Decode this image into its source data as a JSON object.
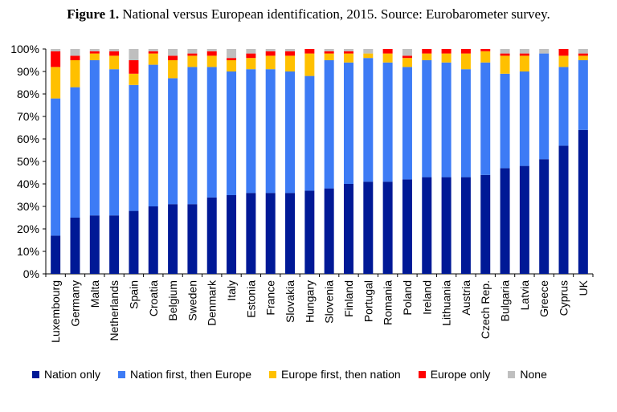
{
  "figure": {
    "label": "Figure 1.",
    "title": "National versus European identification, 2015. Source: Eurobarometer survey."
  },
  "chart_data": {
    "type": "bar",
    "stacked": true,
    "categories": [
      "Luxembourg",
      "Germany",
      "Malta",
      "Netherlands",
      "Spain",
      "Croatia",
      "Belgium",
      "Sweden",
      "Denmark",
      "Italy",
      "Estonia",
      "France",
      "Slovakia",
      "Hungary",
      "Slovenia",
      "Finland",
      "Portugal",
      "Romania",
      "Poland",
      "Ireland",
      "Lithuania",
      "Austria",
      "Czech Rep.",
      "Bulgaria",
      "Latvia",
      "Greece",
      "Cyprus",
      "UK"
    ],
    "series": [
      {
        "name": "Nation only",
        "color": "#001996",
        "values": [
          17,
          25,
          26,
          26,
          28,
          30,
          31,
          31,
          34,
          35,
          36,
          36,
          36,
          37,
          38,
          40,
          41,
          41,
          42,
          43,
          43,
          43,
          44,
          47,
          48,
          51,
          57,
          64
        ]
      },
      {
        "name": "Nation first, then Europe",
        "color": "#3D7BF5",
        "values": [
          61,
          58,
          69,
          65,
          56,
          63,
          56,
          61,
          58,
          55,
          55,
          55,
          54,
          51,
          57,
          54,
          55,
          53,
          50,
          52,
          51,
          48,
          50,
          42,
          42,
          47,
          35,
          31
        ]
      },
      {
        "name": "Europe first, then nation",
        "color": "#FFC000",
        "values": [
          14,
          12,
          3,
          6,
          5,
          5,
          8,
          5,
          5,
          5,
          5,
          6,
          7,
          10,
          3,
          4,
          2,
          4,
          4,
          3,
          4,
          7,
          5,
          8,
          7,
          0,
          5,
          2
        ]
      },
      {
        "name": "Europe only",
        "color": "#FF0000",
        "values": [
          7,
          2,
          1,
          2,
          6,
          1,
          2,
          1,
          2,
          1,
          2,
          2,
          2,
          2,
          1,
          1,
          0,
          2,
          1,
          2,
          2,
          2,
          1,
          1,
          1,
          0,
          3,
          1
        ]
      },
      {
        "name": "None",
        "color": "#BFBFBF",
        "values": [
          1,
          3,
          1,
          1,
          5,
          1,
          3,
          2,
          1,
          4,
          2,
          1,
          1,
          0,
          1,
          1,
          2,
          0,
          3,
          0,
          0,
          0,
          0,
          2,
          2,
          2,
          0,
          2
        ]
      }
    ],
    "ylim": [
      0,
      100
    ],
    "yticks": [
      "0%",
      "10%",
      "20%",
      "30%",
      "40%",
      "50%",
      "60%",
      "70%",
      "80%",
      "90%",
      "100%"
    ],
    "grid": false,
    "legend_position": "bottom"
  }
}
